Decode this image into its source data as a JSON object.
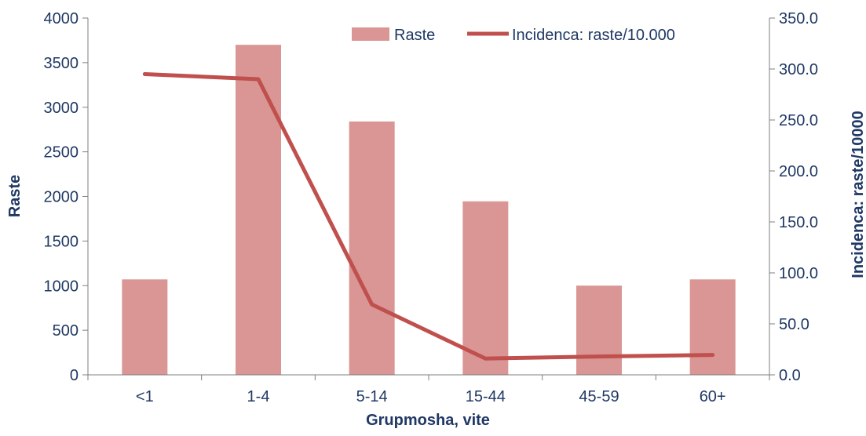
{
  "chart_data": {
    "type": "bar+line",
    "categories": [
      "<1",
      "1-4",
      "5-14",
      "15-44",
      "45-59",
      "60+"
    ],
    "series": [
      {
        "name": "Raste",
        "type": "bar",
        "axis": "left",
        "color": "#d99694",
        "values": [
          1070,
          3700,
          2840,
          1945,
          1000,
          1070
        ]
      },
      {
        "name": "Incidenca: raste/10.000",
        "type": "line",
        "axis": "right",
        "color": "#c0504d",
        "values": [
          295.0,
          290.0,
          69.0,
          16.0,
          18.0,
          19.5
        ]
      }
    ],
    "xlabel": "Grupmosha, vite",
    "ylabel": "Raste",
    "y2label": "Incidenca: raste/10000",
    "ylim": [
      0,
      4000
    ],
    "y2lim": [
      0,
      350
    ],
    "yticks": [
      "0",
      "500",
      "1000",
      "1500",
      "2000",
      "2500",
      "3000",
      "3500",
      "4000"
    ],
    "y2ticks": [
      "0.0",
      "50.0",
      "100.0",
      "150.0",
      "200.0",
      "250.0",
      "300.0",
      "350.0"
    ],
    "legend_position": "top-right",
    "grid": false,
    "axis_color": "#7f7f7f",
    "text_color": "#1f3864"
  }
}
